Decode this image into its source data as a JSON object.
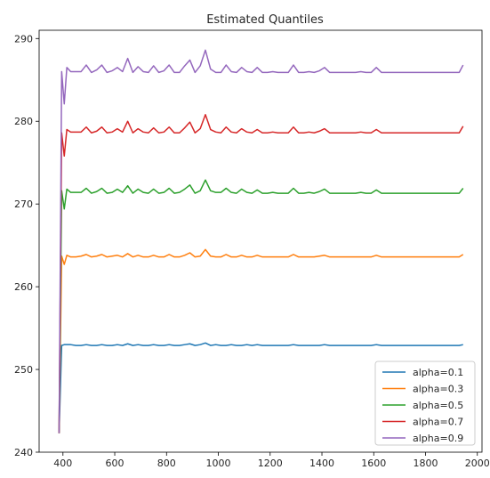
{
  "chart_data": {
    "type": "line",
    "title": "Estimated Quantiles",
    "xlabel": "",
    "ylabel": "",
    "xlim": [
      308,
      2018
    ],
    "ylim": [
      240,
      291
    ],
    "xticks": [
      400,
      600,
      800,
      1000,
      1200,
      1400,
      1600,
      1800,
      2000
    ],
    "yticks": [
      240,
      250,
      260,
      270,
      280,
      290
    ],
    "grid": false,
    "legend_position": "lower-right",
    "x": [
      385,
      395,
      405,
      415,
      430,
      450,
      470,
      490,
      510,
      530,
      550,
      570,
      590,
      610,
      630,
      650,
      670,
      690,
      710,
      730,
      750,
      770,
      790,
      810,
      830,
      850,
      870,
      890,
      910,
      930,
      950,
      970,
      990,
      1010,
      1030,
      1050,
      1070,
      1090,
      1110,
      1130,
      1150,
      1170,
      1190,
      1210,
      1230,
      1250,
      1270,
      1290,
      1310,
      1330,
      1350,
      1370,
      1390,
      1410,
      1430,
      1450,
      1470,
      1490,
      1510,
      1530,
      1550,
      1570,
      1590,
      1610,
      1630,
      1650,
      1670,
      1690,
      1710,
      1730,
      1750,
      1770,
      1790,
      1810,
      1830,
      1850,
      1870,
      1890,
      1910,
      1930,
      1945
    ],
    "series": [
      {
        "name": "alpha=0.1",
        "color": "#1f77b4",
        "values": [
          242.3,
          252.9,
          253.0,
          253.0,
          253.0,
          252.9,
          252.9,
          253.0,
          252.9,
          252.9,
          253.0,
          252.9,
          252.9,
          253.0,
          252.9,
          253.1,
          252.9,
          253.0,
          252.9,
          252.9,
          253.0,
          252.9,
          252.9,
          253.0,
          252.9,
          252.9,
          253.0,
          253.1,
          252.9,
          253.0,
          253.2,
          252.9,
          253.0,
          252.9,
          252.9,
          253.0,
          252.9,
          252.9,
          253.0,
          252.9,
          253.0,
          252.9,
          252.9,
          252.9,
          252.9,
          252.9,
          252.9,
          253.0,
          252.9,
          252.9,
          252.9,
          252.9,
          252.9,
          253.0,
          252.9,
          252.9,
          252.9,
          252.9,
          252.9,
          252.9,
          252.9,
          252.9,
          252.9,
          253.0,
          252.9,
          252.9,
          252.9,
          252.9,
          252.9,
          252.9,
          252.9,
          252.9,
          252.9,
          252.9,
          252.9,
          252.9,
          252.9,
          252.9,
          252.9,
          252.9,
          253.0
        ]
      },
      {
        "name": "alpha=0.3",
        "color": "#ff7f0e",
        "values": [
          242.3,
          263.7,
          262.7,
          263.8,
          263.6,
          263.6,
          263.7,
          263.9,
          263.6,
          263.7,
          263.9,
          263.6,
          263.7,
          263.8,
          263.6,
          264.0,
          263.6,
          263.8,
          263.6,
          263.6,
          263.8,
          263.6,
          263.6,
          263.9,
          263.6,
          263.6,
          263.8,
          264.1,
          263.6,
          263.7,
          264.5,
          263.7,
          263.6,
          263.6,
          263.9,
          263.6,
          263.6,
          263.8,
          263.6,
          263.6,
          263.8,
          263.6,
          263.6,
          263.6,
          263.6,
          263.6,
          263.6,
          263.9,
          263.6,
          263.6,
          263.6,
          263.6,
          263.7,
          263.8,
          263.6,
          263.6,
          263.6,
          263.6,
          263.6,
          263.6,
          263.6,
          263.6,
          263.6,
          263.8,
          263.6,
          263.6,
          263.6,
          263.6,
          263.6,
          263.6,
          263.6,
          263.6,
          263.6,
          263.6,
          263.6,
          263.6,
          263.6,
          263.6,
          263.6,
          263.6,
          263.9
        ]
      },
      {
        "name": "alpha=0.5",
        "color": "#2ca02c",
        "values": [
          242.3,
          271.6,
          269.4,
          271.8,
          271.4,
          271.4,
          271.4,
          271.9,
          271.3,
          271.5,
          271.9,
          271.3,
          271.4,
          271.8,
          271.4,
          272.2,
          271.3,
          271.8,
          271.4,
          271.3,
          271.8,
          271.3,
          271.4,
          271.9,
          271.3,
          271.4,
          271.8,
          272.3,
          271.3,
          271.6,
          272.9,
          271.6,
          271.4,
          271.4,
          271.9,
          271.4,
          271.3,
          271.8,
          271.4,
          271.3,
          271.7,
          271.3,
          271.3,
          271.4,
          271.3,
          271.3,
          271.3,
          271.9,
          271.3,
          271.3,
          271.4,
          271.3,
          271.5,
          271.8,
          271.3,
          271.3,
          271.3,
          271.3,
          271.3,
          271.3,
          271.4,
          271.3,
          271.3,
          271.7,
          271.3,
          271.3,
          271.3,
          271.3,
          271.3,
          271.3,
          271.3,
          271.3,
          271.3,
          271.3,
          271.3,
          271.3,
          271.3,
          271.3,
          271.3,
          271.3,
          271.9
        ]
      },
      {
        "name": "alpha=0.7",
        "color": "#d62728",
        "values": [
          242.3,
          278.6,
          275.8,
          279.0,
          278.7,
          278.7,
          278.7,
          279.3,
          278.6,
          278.8,
          279.3,
          278.6,
          278.7,
          279.1,
          278.7,
          280.0,
          278.6,
          279.1,
          278.7,
          278.6,
          279.2,
          278.6,
          278.7,
          279.3,
          278.6,
          278.6,
          279.2,
          279.9,
          278.6,
          279.1,
          280.8,
          279.0,
          278.7,
          278.6,
          279.3,
          278.7,
          278.6,
          279.1,
          278.7,
          278.6,
          279.0,
          278.6,
          278.6,
          278.7,
          278.6,
          278.6,
          278.6,
          279.3,
          278.6,
          278.6,
          278.7,
          278.6,
          278.8,
          279.1,
          278.6,
          278.6,
          278.6,
          278.6,
          278.6,
          278.6,
          278.7,
          278.6,
          278.6,
          279.0,
          278.6,
          278.6,
          278.6,
          278.6,
          278.6,
          278.6,
          278.6,
          278.6,
          278.6,
          278.6,
          278.6,
          278.6,
          278.6,
          278.6,
          278.6,
          278.6,
          279.4
        ]
      },
      {
        "name": "alpha=0.9",
        "color": "#9467bd",
        "values": [
          242.3,
          286.0,
          282.1,
          286.5,
          286.0,
          286.0,
          286.0,
          286.8,
          285.9,
          286.2,
          286.8,
          285.9,
          286.1,
          286.5,
          286.0,
          287.6,
          285.9,
          286.6,
          286.0,
          285.9,
          286.7,
          285.9,
          286.1,
          286.8,
          285.9,
          285.9,
          286.7,
          287.4,
          285.9,
          286.7,
          288.6,
          286.3,
          285.9,
          285.9,
          286.8,
          286.0,
          285.9,
          286.5,
          286.0,
          285.9,
          286.5,
          285.9,
          285.9,
          286.0,
          285.9,
          285.9,
          285.9,
          286.8,
          285.9,
          285.9,
          286.0,
          285.9,
          286.1,
          286.5,
          285.9,
          285.9,
          285.9,
          285.9,
          285.9,
          285.9,
          286.0,
          285.9,
          285.9,
          286.5,
          285.9,
          285.9,
          285.9,
          285.9,
          285.9,
          285.9,
          285.9,
          285.9,
          285.9,
          285.9,
          285.9,
          285.9,
          285.9,
          285.9,
          285.9,
          285.9,
          286.8
        ]
      }
    ]
  }
}
